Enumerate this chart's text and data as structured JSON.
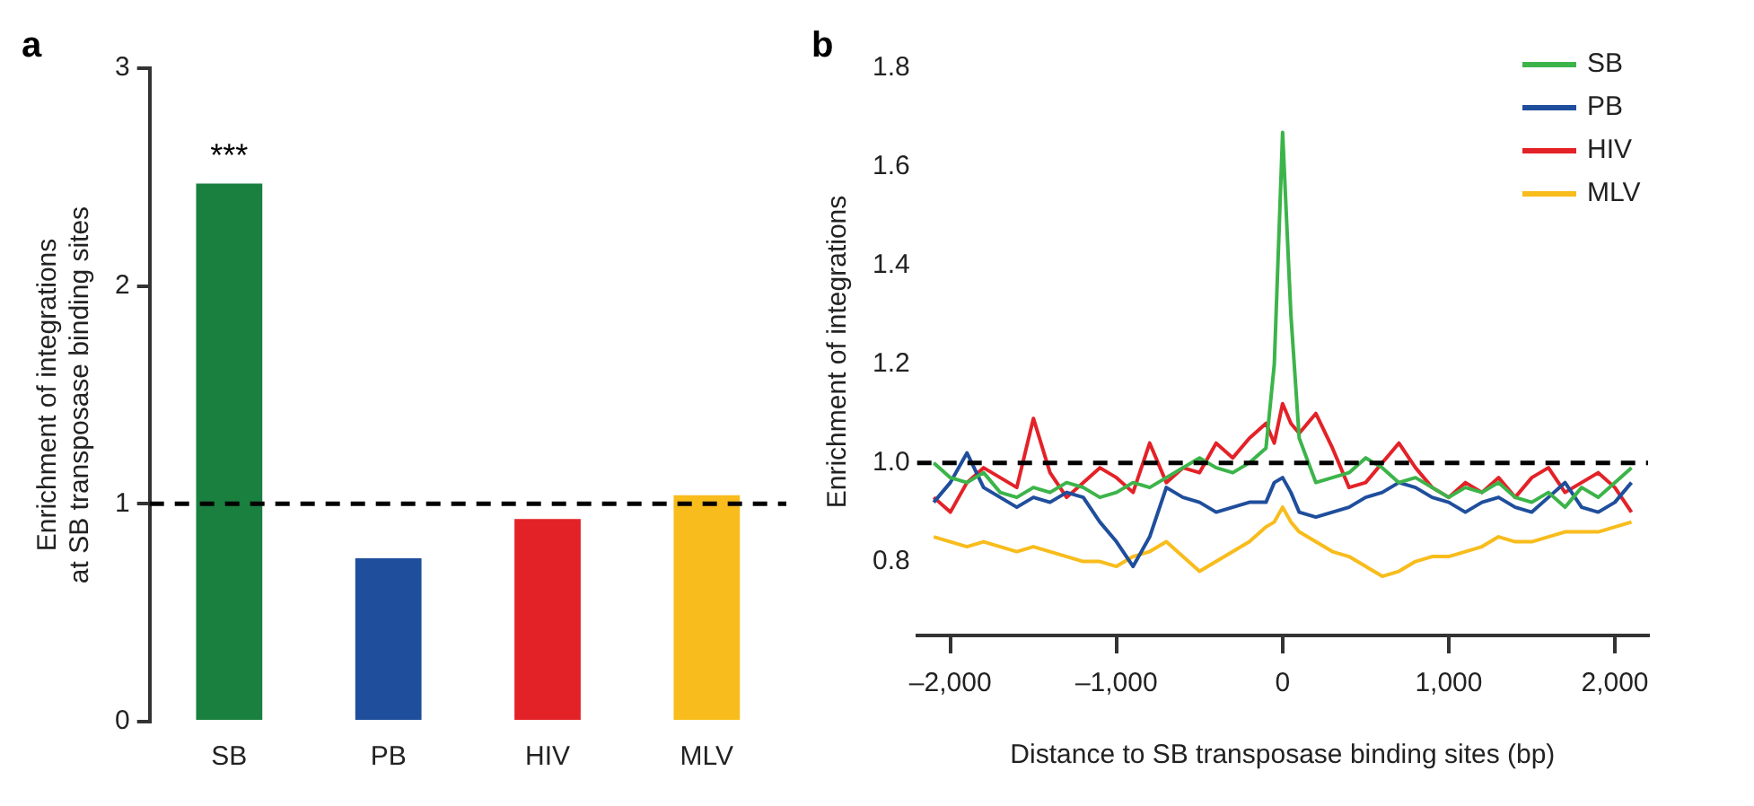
{
  "chart_data": [
    {
      "type": "bar",
      "title": "a",
      "ylabel": "Enrichment of integrations\nat SB transposase binding sites",
      "categories": [
        "SB",
        "PB",
        "HIV",
        "MLV"
      ],
      "values": [
        2.47,
        0.75,
        0.93,
        1.04
      ],
      "colors": [
        "#1a8040",
        "#1f4e9c",
        "#e32228",
        "#f8bc1c"
      ],
      "ylim": [
        0,
        3
      ],
      "yticks": [
        0,
        1,
        2,
        3
      ],
      "grid": false,
      "legend": false,
      "ref_lines": [
        {
          "axis": "y",
          "value": 1,
          "color": "#000000",
          "line_style": "dashed"
        }
      ],
      "annotations": [
        {
          "text": "***",
          "x": "SB",
          "y": 2.47
        }
      ]
    },
    {
      "type": "line",
      "title": "b",
      "xlabel": "Distance to SB transposase binding sites (bp)",
      "ylabel": "Enrichment of integrations",
      "x": [
        -2100,
        -2000,
        -1900,
        -1800,
        -1700,
        -1600,
        -1500,
        -1400,
        -1300,
        -1200,
        -1100,
        -1000,
        -900,
        -800,
        -700,
        -600,
        -500,
        -400,
        -300,
        -200,
        -100,
        -50,
        0,
        50,
        100,
        200,
        300,
        400,
        500,
        600,
        700,
        800,
        900,
        1000,
        1100,
        1200,
        1300,
        1400,
        1500,
        1600,
        1700,
        1800,
        1900,
        2000,
        2100
      ],
      "series": [
        {
          "name": "SB",
          "color": "#3cb44a",
          "values": [
            1.0,
            0.97,
            0.96,
            0.98,
            0.94,
            0.93,
            0.95,
            0.94,
            0.96,
            0.95,
            0.93,
            0.94,
            0.96,
            0.95,
            0.97,
            0.99,
            1.01,
            0.99,
            0.98,
            1.0,
            1.03,
            1.2,
            1.67,
            1.3,
            1.05,
            0.96,
            0.97,
            0.98,
            1.01,
            0.99,
            0.96,
            0.97,
            0.95,
            0.93,
            0.95,
            0.94,
            0.96,
            0.93,
            0.92,
            0.94,
            0.91,
            0.95,
            0.93,
            0.96,
            0.99
          ]
        },
        {
          "name": "PB",
          "color": "#1f4e9c",
          "values": [
            0.92,
            0.96,
            1.02,
            0.95,
            0.93,
            0.91,
            0.93,
            0.92,
            0.94,
            0.93,
            0.88,
            0.84,
            0.79,
            0.85,
            0.95,
            0.93,
            0.92,
            0.9,
            0.91,
            0.92,
            0.92,
            0.96,
            0.97,
            0.94,
            0.9,
            0.89,
            0.9,
            0.91,
            0.93,
            0.94,
            0.96,
            0.95,
            0.93,
            0.92,
            0.9,
            0.92,
            0.93,
            0.91,
            0.9,
            0.93,
            0.96,
            0.91,
            0.9,
            0.92,
            0.96
          ]
        },
        {
          "name": "HIV",
          "color": "#e32228",
          "values": [
            0.93,
            0.9,
            0.96,
            0.99,
            0.97,
            0.95,
            1.09,
            0.98,
            0.93,
            0.96,
            0.99,
            0.97,
            0.94,
            1.04,
            0.96,
            0.99,
            0.98,
            1.04,
            1.01,
            1.05,
            1.08,
            1.04,
            1.12,
            1.08,
            1.06,
            1.1,
            1.03,
            0.95,
            0.96,
            1.0,
            1.04,
            0.99,
            0.95,
            0.93,
            0.96,
            0.94,
            0.97,
            0.93,
            0.97,
            0.99,
            0.94,
            0.96,
            0.98,
            0.95,
            0.9
          ]
        },
        {
          "name": "MLV",
          "color": "#f8bc1c",
          "values": [
            0.85,
            0.84,
            0.83,
            0.84,
            0.83,
            0.82,
            0.83,
            0.82,
            0.81,
            0.8,
            0.8,
            0.79,
            0.81,
            0.82,
            0.84,
            0.81,
            0.78,
            0.8,
            0.82,
            0.84,
            0.87,
            0.88,
            0.91,
            0.88,
            0.86,
            0.84,
            0.82,
            0.81,
            0.79,
            0.77,
            0.78,
            0.8,
            0.81,
            0.81,
            0.82,
            0.83,
            0.85,
            0.84,
            0.84,
            0.85,
            0.86,
            0.86,
            0.86,
            0.87,
            0.88
          ]
        }
      ],
      "xlim": [
        -2200,
        2200
      ],
      "xticks": [
        {
          "value": -2000,
          "label": "–2,000"
        },
        {
          "value": -1000,
          "label": "–1,000"
        },
        0,
        {
          "value": 1000,
          "label": "1,000"
        },
        {
          "value": 2000,
          "label": "2,000"
        }
      ],
      "ylim": [
        0.65,
        1.8
      ],
      "yticks": [
        {
          "value": 0.8,
          "label": "0.8"
        },
        {
          "value": 1.0,
          "label": "1.0"
        },
        {
          "value": 1.2,
          "label": "1.2"
        },
        {
          "value": 1.4,
          "label": "1.4"
        },
        {
          "value": 1.6,
          "label": "1.6"
        },
        {
          "value": 1.8,
          "label": "1.8"
        }
      ],
      "grid": false,
      "legend": "top right",
      "marker": "none",
      "line_style": "solid",
      "ref_lines": [
        {
          "axis": "y",
          "value": 1,
          "color": "#000000",
          "line_style": "dashed"
        }
      ]
    }
  ]
}
